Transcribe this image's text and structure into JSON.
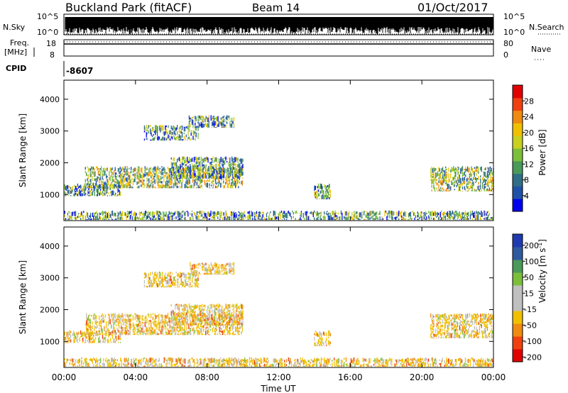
{
  "header": {
    "station": "Buckland Park (fitACF)",
    "beam": "Beam 14",
    "date": "01/Oct/2017"
  },
  "nsky_strip": {
    "label": "N.Sky",
    "right_label": "N.Search",
    "left_ticks": [
      "10^5",
      "10^0"
    ],
    "right_ticks": [
      "10^5",
      "10^0"
    ]
  },
  "freq_strip": {
    "label_line1": "Freq.",
    "label_line2": "[MHz]",
    "right_label": "Nave",
    "left_ticks": [
      "18",
      "8"
    ],
    "right_ticks": [
      "80",
      "0"
    ],
    "freq_value": 18
  },
  "cpid_strip": {
    "label": "CPID",
    "value": "-8607"
  },
  "chart_data": [
    {
      "type": "heatmap",
      "name_on_chart": "",
      "ylabel": "Slant Range [km]",
      "yticks": [
        1000,
        2000,
        3000,
        4000
      ],
      "ylim": [
        180,
        4600
      ],
      "xlim_hours": [
        0,
        24
      ],
      "colorbar": {
        "label": "Power [dB]",
        "ticks": [
          "4",
          "8",
          "12",
          "16",
          "20",
          "24",
          "28"
        ],
        "range": [
          0,
          30
        ],
        "colors": [
          "#0000ee",
          "#1f50a8",
          "#2f6e86",
          "#4a9a5a",
          "#7cbf3a",
          "#c8d020",
          "#f0c000",
          "#f08a10",
          "#f04010",
          "#e00000"
        ]
      },
      "echo_regions": [
        {
          "t_start": 0.05,
          "t_end": 3.2,
          "r_start": 950,
          "r_end": 1350
        },
        {
          "t_start": 1.2,
          "t_end": 10.0,
          "r_start": 1200,
          "r_end": 1900
        },
        {
          "t_start": 6.0,
          "t_end": 10.0,
          "r_start": 1500,
          "r_end": 2200
        },
        {
          "t_start": 4.5,
          "t_end": 7.5,
          "r_start": 2700,
          "r_end": 3200
        },
        {
          "t_start": 7.0,
          "t_end": 9.5,
          "r_start": 3100,
          "r_end": 3500
        },
        {
          "t_start": 14.0,
          "t_end": 14.9,
          "r_start": 850,
          "r_end": 1350
        },
        {
          "t_start": 20.5,
          "t_end": 24.0,
          "r_start": 1100,
          "r_end": 1900
        },
        {
          "t_start": 0.05,
          "t_end": 24.0,
          "r_start": 200,
          "r_end": 500
        }
      ]
    },
    {
      "type": "heatmap",
      "name_on_chart": "",
      "ylabel": "Slant Range [km]",
      "yticks": [
        1000,
        2000,
        3000,
        4000
      ],
      "ylim": [
        180,
        4600
      ],
      "xlim_hours": [
        0,
        24
      ],
      "xlabel": "Time UT",
      "xticks": [
        "00:00",
        "04:00",
        "08:00",
        "12:00",
        "16:00",
        "20:00",
        "00:00"
      ],
      "colorbar": {
        "label_main": "Velocity [m s",
        "label_sup": "-1",
        "label_end": "]",
        "ticks": [
          "200",
          "100",
          "50",
          "15",
          "-15",
          "-50",
          "-100",
          "-200"
        ],
        "range": [
          -250,
          250
        ],
        "colors": [
          "#e00000",
          "#f04010",
          "#f08a10",
          "#f0c000",
          "#c0c0c0",
          "#c0c0c0",
          "#7cbf3a",
          "#4a9a5a",
          "#2f5aa0",
          "#1f3ab0"
        ]
      },
      "echo_regions": [
        {
          "t_start": 0.05,
          "t_end": 3.2,
          "r_start": 950,
          "r_end": 1350
        },
        {
          "t_start": 1.2,
          "t_end": 10.0,
          "r_start": 1200,
          "r_end": 1900
        },
        {
          "t_start": 6.0,
          "t_end": 10.0,
          "r_start": 1500,
          "r_end": 2200
        },
        {
          "t_start": 4.5,
          "t_end": 7.5,
          "r_start": 2700,
          "r_end": 3200
        },
        {
          "t_start": 7.0,
          "t_end": 9.5,
          "r_start": 3100,
          "r_end": 3500
        },
        {
          "t_start": 14.0,
          "t_end": 14.9,
          "r_start": 850,
          "r_end": 1350
        },
        {
          "t_start": 20.5,
          "t_end": 24.0,
          "r_start": 1100,
          "r_end": 1900
        },
        {
          "t_start": 0.05,
          "t_end": 24.0,
          "r_start": 200,
          "r_end": 500
        }
      ]
    }
  ]
}
